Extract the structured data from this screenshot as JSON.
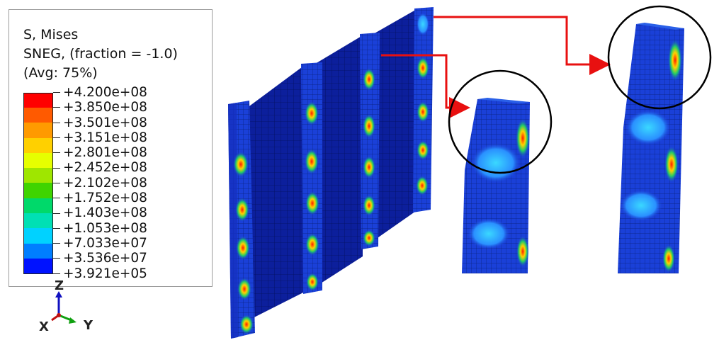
{
  "legend": {
    "title_line1": "S, Mises",
    "title_line2": "SNEG, (fraction = -1.0)",
    "title_line3": "(Avg: 75%)",
    "entries": [
      {
        "value": "+4.200e+08",
        "color": "#ff0000"
      },
      {
        "value": "+3.850e+08",
        "color": "#ff5a00"
      },
      {
        "value": "+3.501e+08",
        "color": "#ff9a00"
      },
      {
        "value": "+3.151e+08",
        "color": "#ffd000"
      },
      {
        "value": "+2.801e+08",
        "color": "#e6ff00"
      },
      {
        "value": "+2.452e+08",
        "color": "#9fe600"
      },
      {
        "value": "+2.102e+08",
        "color": "#3fd400"
      },
      {
        "value": "+1.752e+08",
        "color": "#00d96a"
      },
      {
        "value": "+1.403e+08",
        "color": "#00e0b4"
      },
      {
        "value": "+1.053e+08",
        "color": "#00d2ff"
      },
      {
        "value": "+7.033e+07",
        "color": "#007eff"
      },
      {
        "value": "+3.536e+07",
        "color": "#0012ff"
      },
      {
        "value": "+3.921e+05",
        "color": "#0012ff"
      }
    ]
  },
  "triad": {
    "z_label": "Z",
    "x_label": "X",
    "y_label": "Y",
    "z_color": "#1010c0",
    "x_color": "#c01010",
    "y_color": "#10a010"
  },
  "colors": {
    "mesh_dark": "#0a1a8a",
    "mesh_line": "#3a4fb0",
    "callout_arrow": "#e81010",
    "zoom_circle": "#000000"
  }
}
